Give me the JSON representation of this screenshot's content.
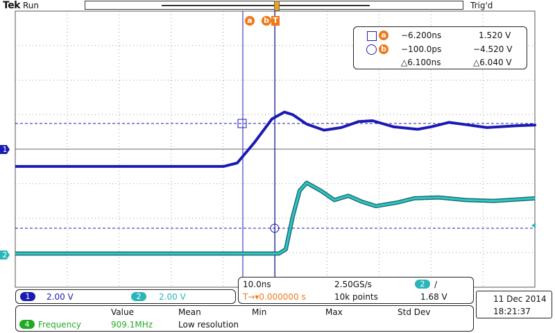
{
  "header": {
    "brand": "Tek",
    "run_state": "Run",
    "trigger_state": "Trig'd"
  },
  "cursors": {
    "a_label": "a",
    "b_label": "b",
    "trigger_marker": "T",
    "readout": {
      "a_time": "−6.200ns",
      "a_value": "1.520 V",
      "b_time": "−100.0ps",
      "b_value": "−4.520 V",
      "delta_time": "△6.100ns",
      "delta_value": "△6.040 V"
    }
  },
  "channels": {
    "ch1": {
      "marker": "1",
      "scale": "2.00 V",
      "color": "#1a1ab4"
    },
    "ch2": {
      "marker": "2",
      "scale": "2.00 V",
      "color": "#2ab6b8"
    }
  },
  "timebase": {
    "time_per_div": "10.0ns",
    "sample_rate": "2.50GS/s",
    "trigger_source": "2",
    "trigger_slope": "/",
    "trigger_position": "T→▾0.000000 s",
    "record_length": "10k points",
    "trigger_level": "1.68 V"
  },
  "measurements": {
    "headers": {
      "value": "Value",
      "mean": "Mean",
      "min": "Min",
      "max": "Max",
      "std_dev": "Std Dev"
    },
    "row": {
      "channel": "4",
      "name": "Frequency",
      "value": "909.1MHz",
      "note": "Low resolution"
    }
  },
  "datetime": {
    "date": "11 Dec  2014",
    "time": "18:21:37"
  },
  "colors": {
    "cursor_orange": "#f07818",
    "accent_blue": "#1a1ab4",
    "accent_cyan": "#2ab6b8",
    "meas_green": "#22aa22"
  },
  "waveforms": {
    "ch1": [
      [
        0,
        -1
      ],
      [
        300,
        -1
      ],
      [
        320,
        -0.8
      ],
      [
        345,
        0.4
      ],
      [
        370,
        1.75
      ],
      [
        388,
        2.15
      ],
      [
        400,
        2.0
      ],
      [
        420,
        1.45
      ],
      [
        445,
        1.1
      ],
      [
        470,
        1.25
      ],
      [
        495,
        1.6
      ],
      [
        515,
        1.65
      ],
      [
        545,
        1.3
      ],
      [
        580,
        1.15
      ],
      [
        600,
        1.3
      ],
      [
        625,
        1.55
      ],
      [
        650,
        1.42
      ],
      [
        680,
        1.25
      ],
      [
        720,
        1.35
      ],
      [
        750,
        1.4
      ],
      [
        770,
        1.33
      ]
    ],
    "ch2": [
      [
        0,
        -6.05
      ],
      [
        380,
        -6.05
      ],
      [
        390,
        -5.8
      ],
      [
        400,
        -3.9
      ],
      [
        410,
        -2.4
      ],
      [
        420,
        -1.95
      ],
      [
        440,
        -2.4
      ],
      [
        460,
        -2.95
      ],
      [
        480,
        -2.7
      ],
      [
        500,
        -3.05
      ],
      [
        520,
        -3.3
      ],
      [
        550,
        -3.1
      ],
      [
        575,
        -2.85
      ],
      [
        610,
        -2.8
      ],
      [
        650,
        -2.95
      ],
      [
        690,
        -3.0
      ],
      [
        730,
        -2.9
      ],
      [
        770,
        -2.85
      ]
    ]
  }
}
